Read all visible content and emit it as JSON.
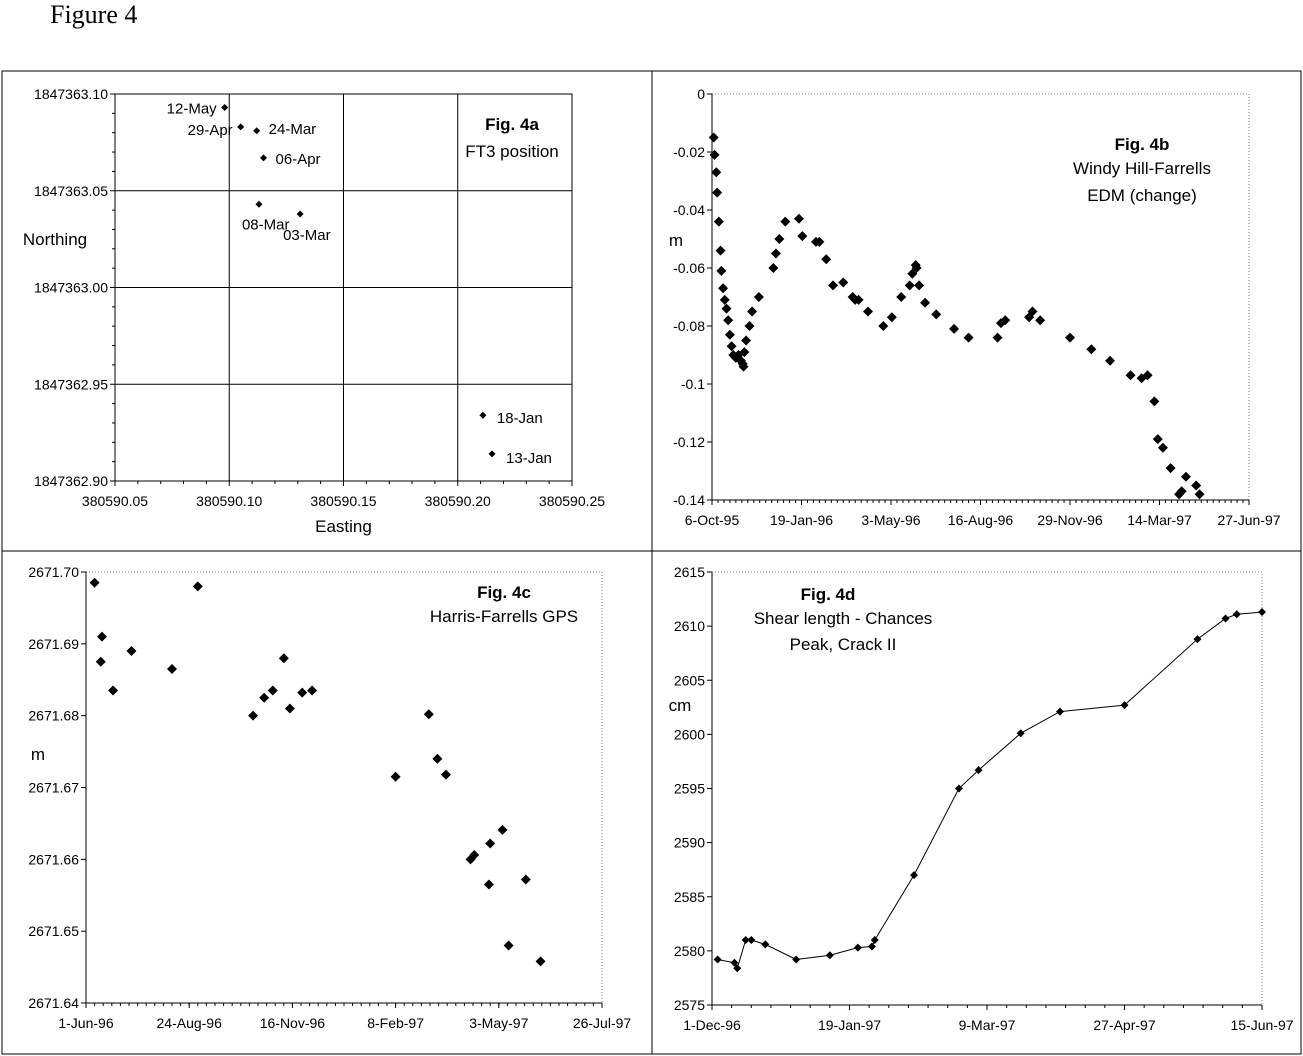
{
  "figure_title": "Figure 4",
  "chart_data": [
    {
      "id": "a",
      "type": "scatter",
      "title": "Fig. 4a",
      "subtitle": [
        "FT3 position"
      ],
      "xlabel": "Easting",
      "ylabel": "Northing",
      "xlim": [
        380590.05,
        380590.25
      ],
      "ylim": [
        1847362.9,
        1847363.1
      ],
      "xticks": [
        "380590.05",
        "380590.10",
        "380590.15",
        "380590.20",
        "380590.25"
      ],
      "yticks": [
        "1847362.90",
        "1847362.95",
        "1847363.00",
        "1847363.05",
        "1847363.10"
      ],
      "grid": true,
      "points": [
        {
          "x": 380590.098,
          "y": 1847363.093,
          "label": "12-May"
        },
        {
          "x": 380590.105,
          "y": 1847363.083,
          "label": "29-Apr"
        },
        {
          "x": 380590.112,
          "y": 1847363.081,
          "label": "24-Mar"
        },
        {
          "x": 380590.115,
          "y": 1847363.067,
          "label": "06-Apr"
        },
        {
          "x": 380590.113,
          "y": 1847363.043,
          "label": "08-Mar"
        },
        {
          "x": 380590.131,
          "y": 1847363.038,
          "label": "03-Mar"
        },
        {
          "x": 380590.211,
          "y": 1847362.934,
          "label": "18-Jan"
        },
        {
          "x": 380590.215,
          "y": 1847362.914,
          "label": "13-Jan"
        }
      ]
    },
    {
      "id": "b",
      "type": "scatter",
      "title": "Fig. 4b",
      "subtitle": [
        "Windy Hill-Farrells",
        "EDM (change)"
      ],
      "xlabel": "",
      "ylabel": "m",
      "xlim": [
        "1995-10-06",
        "1997-06-27"
      ],
      "ylim": [
        -0.14,
        0
      ],
      "xticks": [
        "6-Oct-95",
        "19-Jan-96",
        "3-May-96",
        "16-Aug-96",
        "29-Nov-96",
        "14-Mar-97",
        "27-Jun-97"
      ],
      "yticks": [
        "-0.14",
        "-0.12",
        "-0.1",
        "-0.08",
        "-0.06",
        "-0.04",
        "-0.02",
        "0"
      ],
      "grid": false,
      "points": [
        {
          "x": "1995-10-08",
          "y": -0.015
        },
        {
          "x": "1995-10-09",
          "y": -0.021
        },
        {
          "x": "1995-10-11",
          "y": -0.027
        },
        {
          "x": "1995-10-12",
          "y": -0.034
        },
        {
          "x": "1995-10-14",
          "y": -0.044
        },
        {
          "x": "1995-10-16",
          "y": -0.054
        },
        {
          "x": "1995-10-17",
          "y": -0.061
        },
        {
          "x": "1995-10-19",
          "y": -0.067
        },
        {
          "x": "1995-10-21",
          "y": -0.071
        },
        {
          "x": "1995-10-23",
          "y": -0.074
        },
        {
          "x": "1995-10-25",
          "y": -0.078
        },
        {
          "x": "1995-10-27",
          "y": -0.083
        },
        {
          "x": "1995-10-29",
          "y": -0.087
        },
        {
          "x": "1995-10-31",
          "y": -0.09
        },
        {
          "x": "1995-11-03",
          "y": -0.091
        },
        {
          "x": "1995-11-06",
          "y": -0.09
        },
        {
          "x": "1995-11-09",
          "y": -0.092
        },
        {
          "x": "1995-11-11",
          "y": -0.093
        },
        {
          "x": "1995-11-12",
          "y": -0.094
        },
        {
          "x": "1995-11-13",
          "y": -0.089
        },
        {
          "x": "1995-11-15",
          "y": -0.085
        },
        {
          "x": "1995-11-19",
          "y": -0.08
        },
        {
          "x": "1995-11-22",
          "y": -0.075
        },
        {
          "x": "1995-11-30",
          "y": -0.07
        },
        {
          "x": "1995-12-17",
          "y": -0.06
        },
        {
          "x": "1995-12-20",
          "y": -0.055
        },
        {
          "x": "1995-12-24",
          "y": -0.05
        },
        {
          "x": "1995-12-31",
          "y": -0.044
        },
        {
          "x": "1996-01-16",
          "y": -0.043
        },
        {
          "x": "1996-01-20",
          "y": -0.049
        },
        {
          "x": "1996-02-05",
          "y": -0.051
        },
        {
          "x": "1996-02-09",
          "y": -0.051
        },
        {
          "x": "1996-02-17",
          "y": -0.057
        },
        {
          "x": "1996-02-25",
          "y": -0.066
        },
        {
          "x": "1996-03-08",
          "y": -0.065
        },
        {
          "x": "1996-03-19",
          "y": -0.07
        },
        {
          "x": "1996-03-22",
          "y": -0.071
        },
        {
          "x": "1996-03-26",
          "y": -0.071
        },
        {
          "x": "1996-04-06",
          "y": -0.075
        },
        {
          "x": "1996-04-24",
          "y": -0.08
        },
        {
          "x": "1996-05-04",
          "y": -0.077
        },
        {
          "x": "1996-05-15",
          "y": -0.07
        },
        {
          "x": "1996-05-25",
          "y": -0.066
        },
        {
          "x": "1996-05-28",
          "y": -0.062
        },
        {
          "x": "1996-06-01",
          "y": -0.059
        },
        {
          "x": "1996-06-02",
          "y": -0.06
        },
        {
          "x": "1996-06-05",
          "y": -0.066
        },
        {
          "x": "1996-06-12",
          "y": -0.072
        },
        {
          "x": "1996-06-25",
          "y": -0.076
        },
        {
          "x": "1996-07-16",
          "y": -0.081
        },
        {
          "x": "1996-08-02",
          "y": -0.084
        },
        {
          "x": "1996-09-05",
          "y": -0.084
        },
        {
          "x": "1996-09-09",
          "y": -0.079
        },
        {
          "x": "1996-09-14",
          "y": -0.078
        },
        {
          "x": "1996-10-12",
          "y": -0.077
        },
        {
          "x": "1996-10-16",
          "y": -0.075
        },
        {
          "x": "1996-10-25",
          "y": -0.078
        },
        {
          "x": "1996-11-29",
          "y": -0.084
        },
        {
          "x": "1996-12-24",
          "y": -0.088
        },
        {
          "x": "1997-01-15",
          "y": -0.092
        },
        {
          "x": "1997-02-08",
          "y": -0.097
        },
        {
          "x": "1997-02-21",
          "y": -0.098
        },
        {
          "x": "1997-02-28",
          "y": -0.097
        },
        {
          "x": "1997-03-08",
          "y": -0.106
        },
        {
          "x": "1997-03-12",
          "y": -0.119
        },
        {
          "x": "1997-03-18",
          "y": -0.122
        },
        {
          "x": "1997-03-27",
          "y": -0.129
        },
        {
          "x": "1997-04-06",
          "y": -0.138
        },
        {
          "x": "1997-04-09",
          "y": -0.137
        },
        {
          "x": "1997-04-14",
          "y": -0.132
        },
        {
          "x": "1997-04-26",
          "y": -0.135
        },
        {
          "x": "1997-04-30",
          "y": -0.138
        }
      ]
    },
    {
      "id": "c",
      "type": "scatter",
      "title": "Fig. 4c",
      "subtitle": [
        "Harris-Farrells GPS"
      ],
      "xlabel": "",
      "ylabel": "m",
      "xlim": [
        "1996-06-01",
        "1997-07-26"
      ],
      "ylim": [
        2671.64,
        2671.7
      ],
      "xticks": [
        "1-Jun-96",
        "24-Aug-96",
        "16-Nov-96",
        "8-Feb-97",
        "3-May-97",
        "26-Jul-97"
      ],
      "yticks": [
        "2671.64",
        "2671.65",
        "2671.66",
        "2671.67",
        "2671.68",
        "2671.69",
        "2671.70"
      ],
      "grid": false,
      "points": [
        {
          "x": "1996-06-08",
          "y": 2671.6985
        },
        {
          "x": "1996-06-13",
          "y": 2671.6875
        },
        {
          "x": "1996-06-14",
          "y": 2671.691
        },
        {
          "x": "1996-06-23",
          "y": 2671.6835
        },
        {
          "x": "1996-07-08",
          "y": 2671.689
        },
        {
          "x": "1996-08-10",
          "y": 2671.6865
        },
        {
          "x": "1996-08-31",
          "y": 2671.698
        },
        {
          "x": "1996-10-15",
          "y": 2671.68
        },
        {
          "x": "1996-10-24",
          "y": 2671.6825
        },
        {
          "x": "1996-10-31",
          "y": 2671.6835
        },
        {
          "x": "1996-11-09",
          "y": 2671.688
        },
        {
          "x": "1996-11-14",
          "y": 2671.681
        },
        {
          "x": "1996-11-24",
          "y": 2671.6832
        },
        {
          "x": "1996-12-02",
          "y": 2671.6835
        },
        {
          "x": "1997-02-08",
          "y": 2671.6715
        },
        {
          "x": "1997-03-07",
          "y": 2671.6802
        },
        {
          "x": "1997-03-14",
          "y": 2671.674
        },
        {
          "x": "1997-03-21",
          "y": 2671.6718
        },
        {
          "x": "1997-04-10",
          "y": 2671.66
        },
        {
          "x": "1997-04-13",
          "y": 2671.6606
        },
        {
          "x": "1997-04-25",
          "y": 2671.6565
        },
        {
          "x": "1997-04-26",
          "y": 2671.6622
        },
        {
          "x": "1997-05-06",
          "y": 2671.6641
        },
        {
          "x": "1997-05-11",
          "y": 2671.648
        },
        {
          "x": "1997-05-25",
          "y": 2671.6572
        },
        {
          "x": "1997-06-06",
          "y": 2671.6458
        }
      ]
    },
    {
      "id": "d",
      "type": "line",
      "title": "Fig. 4d",
      "subtitle": [
        "Shear length - Chances",
        "Peak, Crack II"
      ],
      "xlabel": "",
      "ylabel": "cm",
      "xlim": [
        "1996-12-01",
        "1997-06-15"
      ],
      "ylim": [
        2575,
        2615
      ],
      "xticks": [
        "1-Dec-96",
        "19-Jan-97",
        "9-Mar-97",
        "27-Apr-97",
        "15-Jun-97"
      ],
      "yticks": [
        "2575",
        "2580",
        "2585",
        "2590",
        "2595",
        "2600",
        "2605",
        "2610",
        "2615"
      ],
      "grid": false,
      "points": [
        {
          "x": "1996-12-03",
          "y": 2579.2
        },
        {
          "x": "1996-12-09",
          "y": 2578.9
        },
        {
          "x": "1996-12-10",
          "y": 2578.4
        },
        {
          "x": "1996-12-13",
          "y": 2581
        },
        {
          "x": "1996-12-15",
          "y": 2581
        },
        {
          "x": "1996-12-20",
          "y": 2580.6
        },
        {
          "x": "1996-12-31",
          "y": 2579.2
        },
        {
          "x": "1997-01-12",
          "y": 2579.6
        },
        {
          "x": "1997-01-22",
          "y": 2580.3
        },
        {
          "x": "1997-01-27",
          "y": 2580.4
        },
        {
          "x": "1997-01-28",
          "y": 2581
        },
        {
          "x": "1997-02-11",
          "y": 2587
        },
        {
          "x": "1997-02-27",
          "y": 2595
        },
        {
          "x": "1997-03-06",
          "y": 2596.7
        },
        {
          "x": "1997-03-21",
          "y": 2600.1
        },
        {
          "x": "1997-04-04",
          "y": 2602.1
        },
        {
          "x": "1997-04-27",
          "y": 2602.7
        },
        {
          "x": "1997-05-23",
          "y": 2608.8
        },
        {
          "x": "1997-06-02",
          "y": 2610.7
        },
        {
          "x": "1997-06-06",
          "y": 2611.1
        },
        {
          "x": "1997-06-15",
          "y": 2611.3
        }
      ]
    }
  ]
}
